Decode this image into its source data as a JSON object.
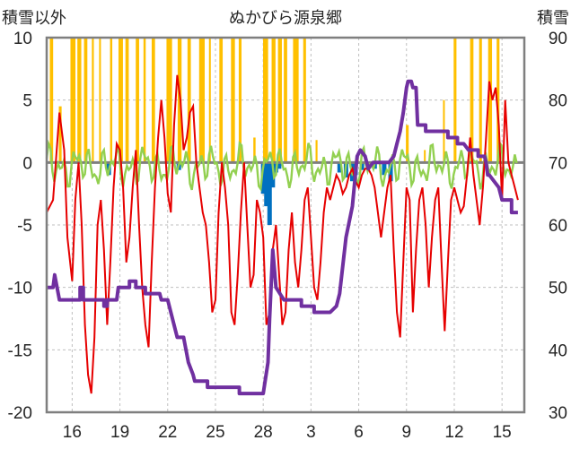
{
  "chart_data": {
    "type": "line",
    "title": "ぬかびら源泉郷",
    "left_axis_label": "積雪以外",
    "right_axis_label": "積雪",
    "left_ylim": [
      -20,
      10
    ],
    "left_ticks": [
      10,
      5,
      0,
      -5,
      -10,
      -15,
      -20
    ],
    "right_ylim": [
      30,
      90
    ],
    "right_ticks": [
      90,
      80,
      70,
      60,
      50,
      40,
      30
    ],
    "x_ticks": [
      "16",
      "19",
      "22",
      "25",
      "28",
      "3",
      "6",
      "9",
      "12",
      "15"
    ],
    "x_tick_positions": [
      0,
      3,
      6,
      9,
      12,
      15,
      18,
      21,
      24,
      27
    ],
    "x_range": [
      -1.6,
      28.4
    ],
    "grid": true,
    "colors": {
      "temperature": "#e60000",
      "snow_depth": "#7030a0",
      "sunshine": "#ffc000",
      "wind": "#92d050",
      "precipitation": "#0070c0",
      "zero_line": "#7f7f7f",
      "frame": "#7f7f7f"
    },
    "temperature": [
      [
        -1.6,
        -4
      ],
      [
        -1.2,
        -3
      ],
      [
        -0.8,
        4
      ],
      [
        -0.5,
        1
      ],
      [
        -0.3,
        -6
      ],
      [
        0,
        -9.5
      ],
      [
        0.2,
        -3
      ],
      [
        0.4,
        0
      ],
      [
        0.6,
        -5
      ],
      [
        0.8,
        -13
      ],
      [
        1,
        -17
      ],
      [
        1.2,
        -18.5
      ],
      [
        1.4,
        -14
      ],
      [
        1.6,
        -5
      ],
      [
        1.8,
        -3
      ],
      [
        2.0,
        -7
      ],
      [
        2.2,
        -13
      ],
      [
        2.4,
        -8
      ],
      [
        2.6,
        -2
      ],
      [
        2.8,
        1.5
      ],
      [
        3.0,
        1
      ],
      [
        3.2,
        -2
      ],
      [
        3.4,
        -8
      ],
      [
        3.6,
        -6
      ],
      [
        3.8,
        -2
      ],
      [
        4,
        1
      ],
      [
        4.2,
        -5
      ],
      [
        4.4,
        -10
      ],
      [
        4.6,
        -13
      ],
      [
        4.8,
        -14.8
      ],
      [
        5.0,
        -8
      ],
      [
        5.2,
        -2
      ],
      [
        5.4,
        2
      ],
      [
        5.6,
        5
      ],
      [
        5.8,
        2
      ],
      [
        6,
        -2.5
      ],
      [
        6.2,
        -4
      ],
      [
        6.4,
        3
      ],
      [
        6.6,
        7
      ],
      [
        6.8,
        5
      ],
      [
        7.0,
        1
      ],
      [
        7.2,
        2
      ],
      [
        7.4,
        4
      ],
      [
        7.6,
        4.5
      ],
      [
        7.8,
        0
      ],
      [
        8.0,
        -2
      ],
      [
        8.2,
        -4
      ],
      [
        8.4,
        -5
      ],
      [
        8.6,
        -8
      ],
      [
        8.8,
        -12
      ],
      [
        9.0,
        -11
      ],
      [
        9.2,
        -4
      ],
      [
        9.4,
        0
      ],
      [
        9.6,
        -2
      ],
      [
        9.8,
        -5
      ],
      [
        10,
        -12
      ],
      [
        10.2,
        -13
      ],
      [
        10.4,
        -9
      ],
      [
        10.6,
        -4
      ],
      [
        10.8,
        0
      ],
      [
        11,
        -5
      ],
      [
        11.2,
        -10
      ],
      [
        11.4,
        -9
      ],
      [
        11.6,
        -3
      ],
      [
        11.8,
        -4
      ],
      [
        12,
        -6
      ],
      [
        12.2,
        -13
      ],
      [
        12.4,
        -12
      ],
      [
        12.6,
        -7
      ],
      [
        12.8,
        -5
      ],
      [
        13.0,
        -9
      ],
      [
        13.2,
        -13
      ],
      [
        13.4,
        -12
      ],
      [
        13.6,
        -7
      ],
      [
        13.8,
        -4
      ],
      [
        14.0,
        -8
      ],
      [
        14.2,
        -10
      ],
      [
        14.4,
        -7
      ],
      [
        14.6,
        -3
      ],
      [
        14.8,
        -2
      ],
      [
        15.0,
        -6
      ],
      [
        15.2,
        -10
      ],
      [
        15.4,
        -11
      ],
      [
        15.6,
        -8
      ],
      [
        15.8,
        -4
      ],
      [
        16.0,
        -2
      ],
      [
        16.2,
        -3
      ],
      [
        16.4,
        -2
      ],
      [
        16.6,
        -1
      ],
      [
        16.8,
        -1.5
      ],
      [
        17.0,
        -2.5
      ],
      [
        17.2,
        -2
      ],
      [
        17.4,
        -1
      ],
      [
        17.6,
        -0.5
      ],
      [
        17.8,
        -1.5
      ],
      [
        18.0,
        -2
      ],
      [
        18.2,
        -1
      ],
      [
        18.4,
        -0.5
      ],
      [
        18.6,
        -0.5
      ],
      [
        18.8,
        -1
      ],
      [
        19.0,
        -2
      ],
      [
        19.2,
        -4
      ],
      [
        19.4,
        -6
      ],
      [
        19.6,
        -4
      ],
      [
        19.8,
        -2
      ],
      [
        20,
        -1
      ],
      [
        20.2,
        -7
      ],
      [
        20.4,
        -12
      ],
      [
        20.6,
        -14
      ],
      [
        20.8,
        -8
      ],
      [
        21,
        -2
      ],
      [
        21.2,
        -3
      ],
      [
        21.4,
        -12
      ],
      [
        21.6,
        -7
      ],
      [
        21.8,
        -3
      ],
      [
        22.0,
        -2
      ],
      [
        22.2,
        -5
      ],
      [
        22.4,
        -10
      ],
      [
        22.6,
        -6
      ],
      [
        22.8,
        -3
      ],
      [
        23.0,
        -2
      ],
      [
        23.2,
        -8
      ],
      [
        23.4,
        -13.5
      ],
      [
        23.6,
        -8
      ],
      [
        23.8,
        -3
      ],
      [
        24,
        -2
      ],
      [
        24.2,
        -3
      ],
      [
        24.4,
        -4
      ],
      [
        24.6,
        -3.5
      ],
      [
        24.8,
        -1
      ],
      [
        25,
        2
      ],
      [
        25.2,
        -1
      ],
      [
        25.4,
        -3
      ],
      [
        25.6,
        -5
      ],
      [
        25.8,
        -2
      ],
      [
        26,
        2
      ],
      [
        26.2,
        6.5
      ],
      [
        26.4,
        5
      ],
      [
        26.6,
        6
      ],
      [
        26.8,
        3
      ],
      [
        27,
        -3
      ],
      [
        27.2,
        5
      ],
      [
        27.4,
        0
      ],
      [
        27.6,
        -1
      ],
      [
        27.8,
        -2
      ],
      [
        28.0,
        -3
      ]
    ],
    "snow_depth": [
      [
        -1.6,
        50
      ],
      [
        -1.2,
        50
      ],
      [
        -1.1,
        52
      ],
      [
        -0.8,
        48
      ],
      [
        0,
        48
      ],
      [
        0.5,
        48
      ],
      [
        0.5,
        50
      ],
      [
        0.7,
        50
      ],
      [
        0.7,
        48
      ],
      [
        2.0,
        48
      ],
      [
        2.0,
        47
      ],
      [
        2.2,
        47
      ],
      [
        2.2,
        48
      ],
      [
        2.8,
        48
      ],
      [
        2.9,
        50
      ],
      [
        3.6,
        50
      ],
      [
        3.6,
        51
      ],
      [
        4.0,
        51
      ],
      [
        4.0,
        50
      ],
      [
        4.6,
        50
      ],
      [
        4.6,
        49
      ],
      [
        5.5,
        49
      ],
      [
        5.6,
        48
      ],
      [
        6.0,
        48
      ],
      [
        6.2,
        46
      ],
      [
        6.5,
        43
      ],
      [
        6.6,
        42
      ],
      [
        7.0,
        42
      ],
      [
        7.3,
        38
      ],
      [
        7.6,
        36
      ],
      [
        7.7,
        35
      ],
      [
        8.2,
        35
      ],
      [
        8.5,
        35
      ],
      [
        8.5,
        34
      ],
      [
        10.5,
        34
      ],
      [
        10.5,
        33
      ],
      [
        12.0,
        33
      ],
      [
        12.3,
        38
      ],
      [
        12.4,
        45
      ],
      [
        12.6,
        56
      ],
      [
        12.8,
        50
      ],
      [
        13.3,
        48
      ],
      [
        14.4,
        48
      ],
      [
        14.4,
        47
      ],
      [
        15.2,
        47
      ],
      [
        15.2,
        46
      ],
      [
        16.2,
        46
      ],
      [
        16.6,
        47
      ],
      [
        16.8,
        49
      ],
      [
        17.2,
        58
      ],
      [
        17.6,
        63
      ],
      [
        17.9,
        71
      ],
      [
        18.1,
        72
      ],
      [
        18.4,
        71
      ],
      [
        18.6,
        69
      ],
      [
        18.9,
        70
      ],
      [
        19.5,
        70
      ],
      [
        19.9,
        70
      ],
      [
        20.2,
        71
      ],
      [
        20.4,
        73
      ],
      [
        20.6,
        75
      ],
      [
        20.8,
        78
      ],
      [
        21.0,
        82
      ],
      [
        21.1,
        83
      ],
      [
        21.3,
        83
      ],
      [
        21.4,
        82
      ],
      [
        21.6,
        82
      ],
      [
        21.7,
        76
      ],
      [
        22.2,
        76
      ],
      [
        22.2,
        75
      ],
      [
        23.6,
        75
      ],
      [
        23.6,
        74
      ],
      [
        24.2,
        74
      ],
      [
        24.2,
        73
      ],
      [
        24.6,
        73
      ],
      [
        24.9,
        72
      ],
      [
        25.5,
        72
      ],
      [
        25.5,
        71
      ],
      [
        25.9,
        71
      ],
      [
        26.0,
        70
      ],
      [
        26.1,
        68
      ],
      [
        26.2,
        68
      ],
      [
        26.8,
        66
      ],
      [
        27.0,
        64
      ],
      [
        27.3,
        64
      ],
      [
        27.6,
        64
      ],
      [
        27.6,
        62
      ],
      [
        28.0,
        62
      ]
    ],
    "sunshine_bars": [
      [
        -1.3,
        0.6
      ],
      [
        -0.75,
        0.5
      ],
      [
        0.05,
        0.9
      ],
      [
        0.45,
        0.7
      ],
      [
        0.85,
        0.6
      ],
      [
        1.3,
        0.35
      ],
      [
        1.75,
        0.3
      ],
      [
        2.45,
        0.4
      ],
      [
        3.05,
        0.8
      ],
      [
        3.45,
        0.6
      ],
      [
        4.1,
        0.6
      ],
      [
        4.55,
        0.4
      ],
      [
        5.1,
        0.6
      ],
      [
        6.1,
        1.0
      ],
      [
        6.75,
        0.7
      ],
      [
        7.35,
        0.6
      ],
      [
        8.15,
        1.0
      ],
      [
        8.65,
        0.3
      ],
      [
        9.35,
        0.6
      ],
      [
        10.1,
        0.7
      ],
      [
        10.55,
        0.5
      ],
      [
        11.45,
        0.4
      ],
      [
        12.15,
        0.9
      ],
      [
        12.65,
        0.7
      ],
      [
        13.05,
        0.7
      ],
      [
        13.4,
        0.6
      ],
      [
        14.05,
        1.0
      ],
      [
        14.6,
        0.5
      ],
      [
        15.35,
        0.35
      ],
      [
        17.95,
        0.3
      ],
      [
        21.05,
        0.5
      ],
      [
        22.15,
        0.3
      ],
      [
        23.35,
        0.3
      ],
      [
        24.05,
        0.5
      ],
      [
        25.1,
        0.6
      ],
      [
        25.65,
        0.5
      ],
      [
        26.25,
        0.7
      ],
      [
        26.75,
        0.5
      ]
    ],
    "sunshine_tops": [
      [
        -1.3,
        10
      ],
      [
        -0.75,
        4.5
      ],
      [
        0.05,
        10
      ],
      [
        0.45,
        10
      ],
      [
        0.85,
        10
      ],
      [
        1.3,
        10
      ],
      [
        1.75,
        10
      ],
      [
        2.45,
        10
      ],
      [
        3.05,
        10
      ],
      [
        3.45,
        10
      ],
      [
        4.1,
        10
      ],
      [
        4.55,
        10
      ],
      [
        5.1,
        10
      ],
      [
        6.1,
        10
      ],
      [
        6.75,
        10
      ],
      [
        7.35,
        10
      ],
      [
        8.15,
        10
      ],
      [
        8.65,
        10
      ],
      [
        9.35,
        10
      ],
      [
        10.1,
        10
      ],
      [
        10.55,
        10
      ],
      [
        11.45,
        2
      ],
      [
        12.15,
        10
      ],
      [
        12.65,
        10
      ],
      [
        13.05,
        10
      ],
      [
        13.4,
        10
      ],
      [
        14.05,
        10
      ],
      [
        14.6,
        10
      ],
      [
        15.35,
        1.8
      ],
      [
        17.95,
        0.3
      ],
      [
        21.05,
        3
      ],
      [
        22.15,
        1
      ],
      [
        23.35,
        5
      ],
      [
        24.05,
        10
      ],
      [
        25.1,
        10
      ],
      [
        25.65,
        10
      ],
      [
        26.25,
        10
      ],
      [
        26.75,
        10
      ]
    ],
    "precipitation": [
      [
        2.3,
        -1
      ],
      [
        6.7,
        -0.6
      ],
      [
        12.0,
        -2.5
      ],
      [
        12.2,
        -3.5
      ],
      [
        12.4,
        -5
      ],
      [
        12.6,
        -2
      ],
      [
        12.8,
        -0.8
      ],
      [
        13.0,
        -0.5
      ],
      [
        16.8,
        -0.8
      ],
      [
        17.2,
        -1.2
      ],
      [
        17.6,
        -1.5
      ],
      [
        17.8,
        -1
      ],
      [
        18.2,
        -0.6
      ],
      [
        19.0,
        -0.5
      ],
      [
        19.6,
        -1
      ],
      [
        20.0,
        -1.5
      ]
    ]
  }
}
